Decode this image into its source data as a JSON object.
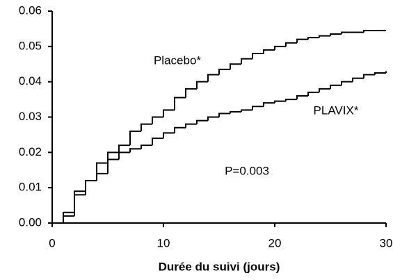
{
  "chart_data": {
    "type": "line",
    "step": "post",
    "x_label": "Durée du suivi (jours)",
    "annotation": "P=0.003",
    "x": [
      0,
      1,
      2,
      3,
      4,
      5,
      6,
      7,
      8,
      9,
      10,
      11,
      12,
      13,
      14,
      15,
      16,
      17,
      18,
      19,
      20,
      21,
      22,
      23,
      24,
      25,
      26,
      27,
      28,
      29,
      30
    ],
    "series": [
      {
        "name": "Placebo*",
        "color": "#000000",
        "values": [
          0,
          0.003,
          0.009,
          0.012,
          0.014,
          0.02,
          0.022,
          0.026,
          0.028,
          0.03,
          0.032,
          0.0355,
          0.038,
          0.04,
          0.042,
          0.0435,
          0.045,
          0.0465,
          0.048,
          0.049,
          0.05,
          0.051,
          0.052,
          0.0525,
          0.053,
          0.0535,
          0.054,
          0.054,
          0.0545,
          0.0545,
          0.0545
        ]
      },
      {
        "name": "PLAVIX*",
        "color": "#000000",
        "values": [
          0,
          0.002,
          0.008,
          0.012,
          0.017,
          0.018,
          0.02,
          0.021,
          0.022,
          0.024,
          0.0255,
          0.027,
          0.028,
          0.029,
          0.03,
          0.031,
          0.0315,
          0.032,
          0.033,
          0.034,
          0.0345,
          0.035,
          0.036,
          0.037,
          0.038,
          0.039,
          0.04,
          0.041,
          0.042,
          0.0425,
          0.043
        ]
      }
    ],
    "xlim": [
      0,
      30
    ],
    "xticks": [
      0,
      10,
      20,
      30
    ],
    "ylim": [
      0,
      0.06
    ],
    "yticks": [
      {
        "value": 0,
        "label": "0.00"
      },
      0.01,
      0.02,
      0.03,
      0.04,
      0.05,
      0.06
    ],
    "grid": false
  }
}
